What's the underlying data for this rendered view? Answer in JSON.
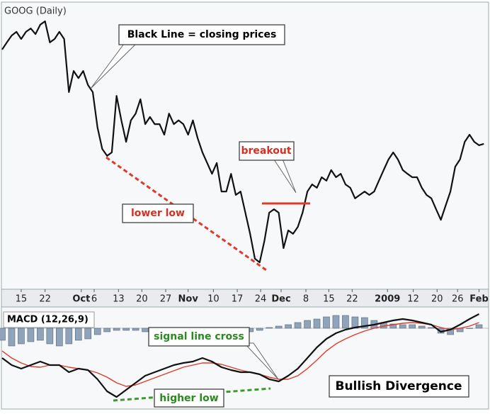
{
  "chart_data": [
    {
      "type": "line",
      "title": "GOOG (Daily)",
      "annotations": [
        "Black Line = closing prices",
        "breakout",
        "lower low"
      ],
      "color": "#111111",
      "values": [
        83.9,
        86.4,
        88.8,
        90.1,
        87.6,
        90.1,
        91.3,
        89.3,
        92.6,
        93.8,
        86.4,
        87.6,
        90.1,
        87.6,
        69.0,
        76.4,
        73.9,
        76.4,
        71.5,
        69.0,
        56.6,
        49.1,
        46.7,
        47.9,
        67.7,
        59.1,
        51.6,
        59.1,
        61.5,
        66.5,
        57.8,
        60.3,
        57.8,
        57.8,
        54.1,
        61.5,
        57.8,
        59.1,
        57.8,
        54.1,
        59.1,
        52.9,
        47.9,
        44.2,
        40.4,
        44.2,
        34.2,
        34.2,
        40.4,
        33.0,
        34.2,
        26.8,
        19.4,
        10.7,
        9.4,
        16.9,
        26.8,
        28.0,
        26.8,
        14.4,
        20.6,
        19.4,
        21.8,
        26.8,
        34.2,
        36.7,
        35.5,
        39.2,
        38.0,
        41.7,
        39.2,
        40.4,
        36.7,
        35.5,
        31.8,
        33.0,
        34.2,
        33.0,
        34.2,
        38.0,
        41.7,
        45.4,
        47.9,
        45.4,
        41.7,
        40.4,
        39.2,
        39.2,
        35.5,
        33.0,
        31.8,
        28.0,
        24.3,
        29.3,
        34.2,
        42.9,
        45.4,
        51.6,
        54.1,
        51.6,
        50.4,
        50.9
      ],
      "xlim": [
        0,
        102
      ],
      "ylim": [
        0,
        100
      ],
      "xticks": [
        {
          "value": 4,
          "label": "15"
        },
        {
          "value": 9,
          "label": "22"
        },
        {
          "value": 16.6,
          "label": "Oct"
        },
        {
          "value": 19.3,
          "label": "6"
        },
        {
          "value": 24.4,
          "label": "13"
        },
        {
          "value": 29.3,
          "label": "20"
        },
        {
          "value": 34.3,
          "label": "27"
        },
        {
          "value": 39,
          "label": "Nov"
        },
        {
          "value": 44.3,
          "label": "10"
        },
        {
          "value": 49.3,
          "label": "17"
        },
        {
          "value": 54.2,
          "label": "24"
        },
        {
          "value": 58.5,
          "label": "Dec"
        },
        {
          "value": 63.7,
          "label": "8"
        },
        {
          "value": 68.5,
          "label": "15"
        },
        {
          "value": 73.4,
          "label": "22"
        },
        {
          "value": 80.8,
          "label": "2009"
        },
        {
          "value": 86.2,
          "label": "12"
        },
        {
          "value": 91.2,
          "label": "20"
        },
        {
          "value": 95.5,
          "label": "26"
        },
        {
          "value": 100,
          "label": "Feb"
        }
      ]
    },
    {
      "type": "line",
      "title": "MACD (12,26,9)",
      "annotations": [
        "signal line cross",
        "higher low",
        "Bullish Divergence"
      ],
      "x": [
        0,
        2,
        4,
        6,
        8,
        10,
        12,
        14,
        16,
        18,
        20,
        22,
        24,
        26,
        28,
        30,
        32,
        34,
        36,
        38,
        40,
        42,
        44,
        46,
        48,
        50,
        52,
        54,
        56,
        58,
        60,
        62,
        64,
        66,
        68,
        70,
        72,
        74,
        76,
        78,
        80,
        82,
        84,
        86,
        88,
        90,
        92,
        94,
        96,
        98,
        100
      ],
      "xlim": [
        0,
        102
      ],
      "ylim": [
        -5.7,
        1.4
      ],
      "series": [
        {
          "type": "bar",
          "color": "#8fa3ba",
          "values": [
            -0.85,
            -1.25,
            -1.1,
            -0.95,
            -0.85,
            -1.1,
            -1.25,
            -1.1,
            -0.85,
            -0.75,
            -0.45,
            -0.25,
            -0.15,
            -0.15,
            -0.15,
            -0.25,
            -0.35,
            -0.35,
            -0.25,
            -0.15,
            -0.15,
            -0.1,
            0,
            -0.15,
            -0.35,
            -0.35,
            -0.25,
            -0.15,
            0.05,
            0.15,
            0.25,
            0.4,
            0.55,
            0.65,
            0.8,
            0.9,
            0.9,
            0.8,
            0.75,
            0.55,
            0.4,
            0.3,
            0.25,
            0.25,
            0.15,
            0.05,
            -0.35,
            -0.45,
            -0.25,
            0,
            0.25
          ]
        },
        {
          "type": "line",
          "color": "#e03a2a",
          "values": [
            -1.6,
            -2.1,
            -2.45,
            -2.7,
            -2.75,
            -2.6,
            -2.6,
            -2.75,
            -2.85,
            -2.95,
            -3.15,
            -3.45,
            -3.85,
            -4.1,
            -4.0,
            -3.75,
            -3.5,
            -3.25,
            -3.0,
            -2.75,
            -2.6,
            -2.45,
            -2.45,
            -2.55,
            -2.75,
            -2.95,
            -3.1,
            -3.25,
            -3.45,
            -3.6,
            -3.6,
            -3.35,
            -2.85,
            -2.25,
            -1.6,
            -1.1,
            -0.75,
            -0.45,
            -0.2,
            0,
            0.15,
            0.25,
            0.35,
            0.4,
            0.35,
            0.25,
            0.05,
            -0.1,
            0,
            0.15,
            0.4
          ]
        },
        {
          "type": "line",
          "color": "#111111",
          "values": [
            -2.1,
            -2.6,
            -2.85,
            -2.6,
            -2.35,
            -2.6,
            -2.6,
            -3.1,
            -2.85,
            -2.95,
            -3.6,
            -4.45,
            -4.85,
            -4.35,
            -3.85,
            -3.35,
            -3.1,
            -2.85,
            -2.6,
            -2.45,
            -2.35,
            -2.1,
            -2.35,
            -2.75,
            -2.95,
            -3.1,
            -3.1,
            -3.25,
            -3.6,
            -3.75,
            -3.35,
            -2.85,
            -2.1,
            -1.35,
            -0.75,
            -0.35,
            -0.1,
            0.05,
            0.15,
            0.25,
            0.4,
            0.55,
            0.65,
            0.55,
            0.4,
            0.25,
            -0.25,
            -0.1,
            0.25,
            0.65,
            1.0
          ]
        }
      ]
    }
  ]
}
